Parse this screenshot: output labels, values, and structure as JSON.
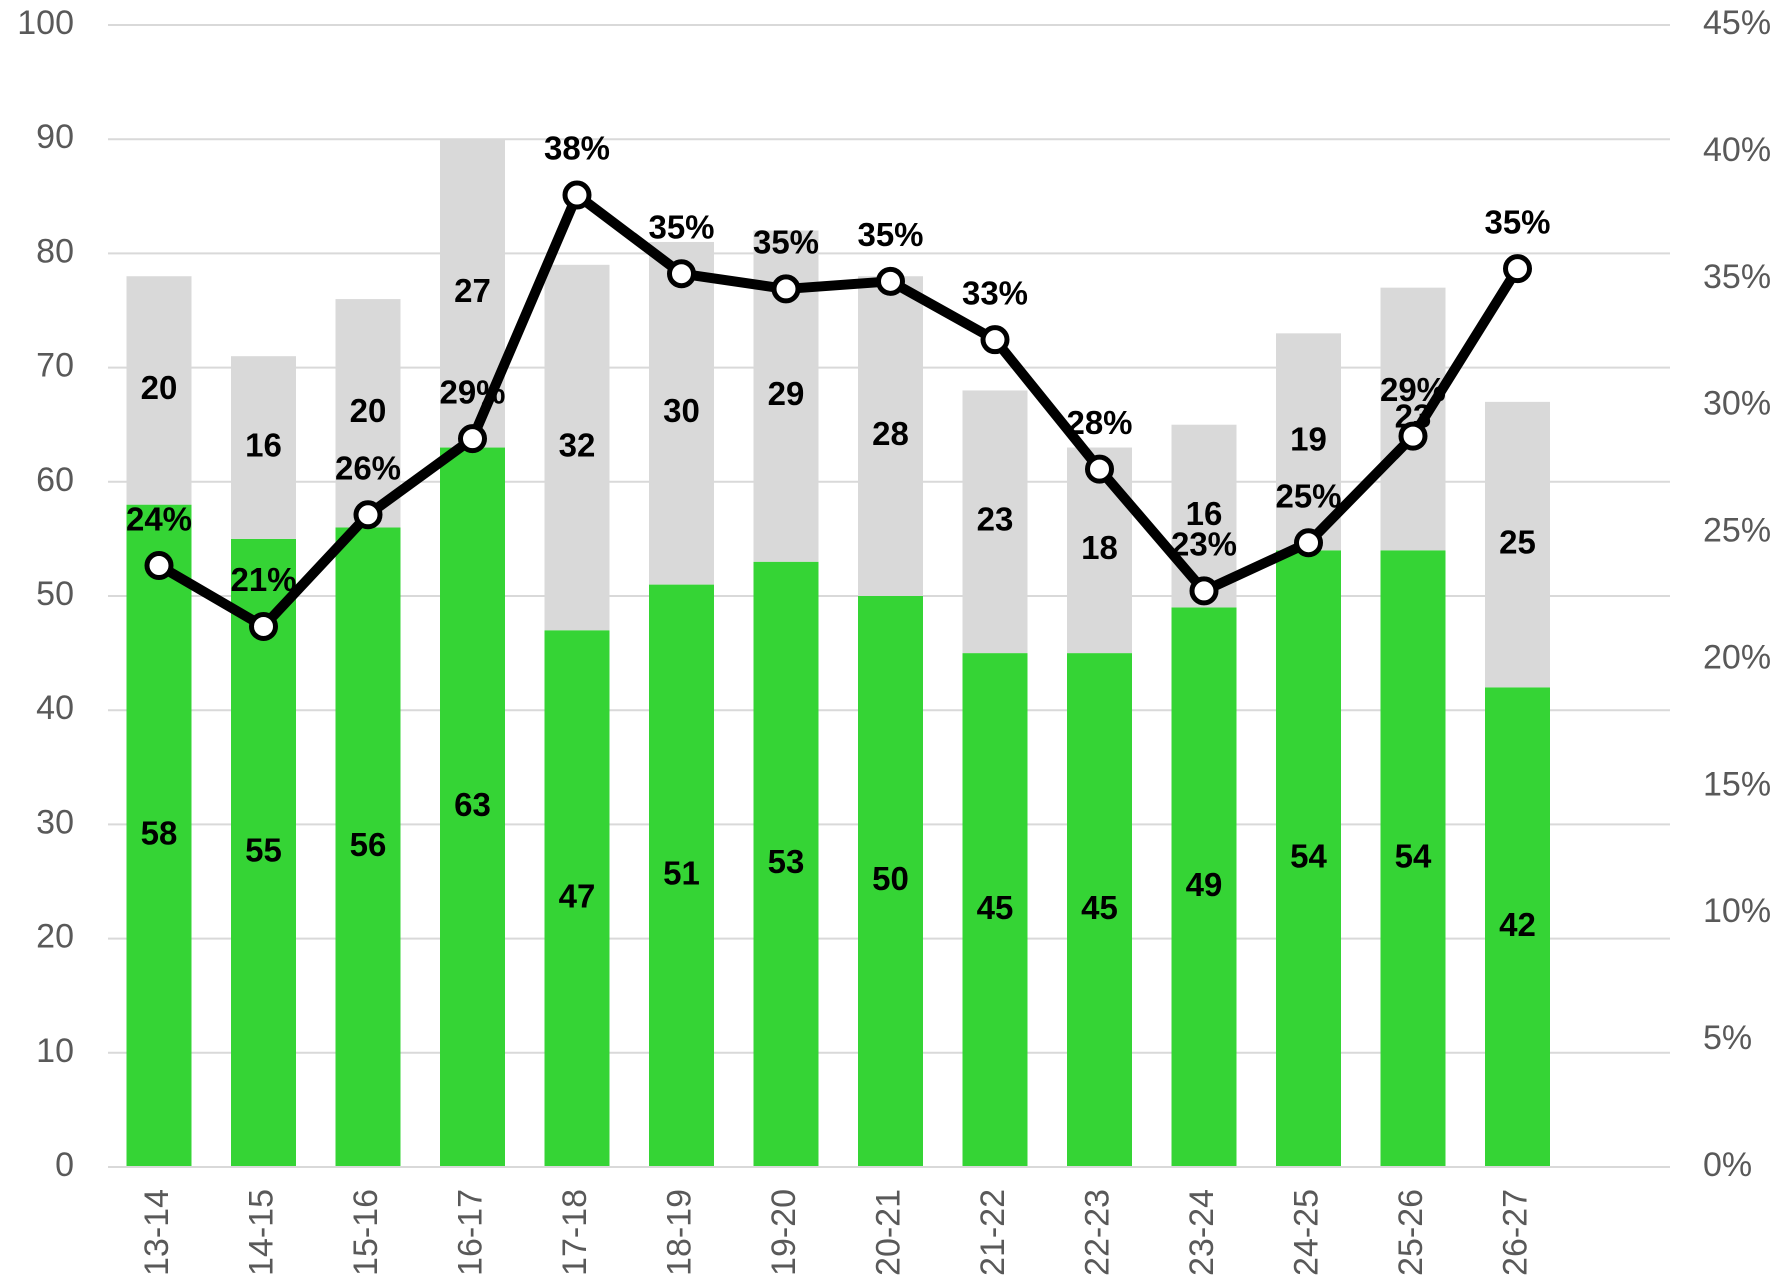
{
  "chart_data": {
    "type": "bar",
    "stacked": true,
    "categories": [
      "13-14",
      "14-15",
      "15-16",
      "16-17",
      "17-18",
      "18-19",
      "19-20",
      "20-21",
      "21-22",
      "22-23",
      "23-24",
      "24-25",
      "25-26",
      "26-27"
    ],
    "series": [
      {
        "color": "#35d435",
        "values": [
          58,
          55,
          56,
          63,
          47,
          51,
          53,
          50,
          45,
          45,
          49,
          54,
          54,
          42
        ]
      },
      {
        "color": "#d9d9d9",
        "values": [
          20,
          16,
          20,
          27,
          32,
          30,
          29,
          28,
          23,
          18,
          16,
          19,
          23,
          25
        ]
      },
      {
        "type": "line",
        "axis": "y2",
        "color": "#000000",
        "values": [
          23.7,
          21.3,
          25.7,
          28.7,
          38.3,
          35.2,
          34.6,
          34.9,
          32.6,
          27.5,
          22.7,
          24.6,
          28.8,
          35.4
        ],
        "value_labels": [
          "24%",
          "21%",
          "26%",
          "29%",
          "38%",
          "35%",
          "35%",
          "35%",
          "33%",
          "28%",
          "23%",
          "25%",
          "29%",
          "35%"
        ]
      }
    ],
    "ylim": [
      0,
      100
    ],
    "yticks": [
      0,
      10,
      20,
      30,
      40,
      50,
      60,
      70,
      80,
      90,
      100
    ],
    "y2lim": [
      0,
      45
    ],
    "y2ticks": [
      {
        "value": 0,
        "label": "0%"
      },
      {
        "value": 5,
        "label": "5%"
      },
      {
        "value": 10,
        "label": "10%"
      },
      {
        "value": 15,
        "label": "15%"
      },
      {
        "value": 20,
        "label": "20%"
      },
      {
        "value": 25,
        "label": "25%"
      },
      {
        "value": 30,
        "label": "30%"
      },
      {
        "value": 35,
        "label": "35%"
      },
      {
        "value": 40,
        "label": "40%"
      },
      {
        "value": 45,
        "label": "45%"
      }
    ],
    "grid": true
  }
}
